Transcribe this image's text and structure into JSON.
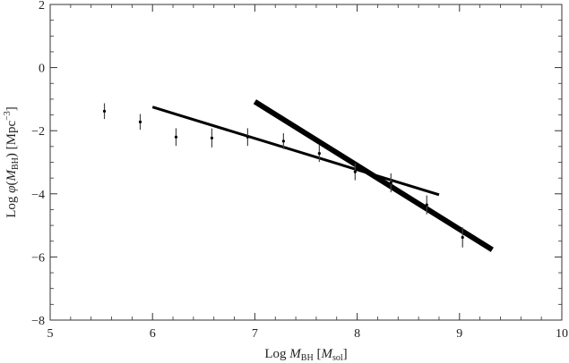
{
  "chart_data": {
    "type": "scatter",
    "xlim": [
      5,
      10
    ],
    "ylim": [
      -8,
      2
    ],
    "x_ticks": [
      5,
      6,
      7,
      8,
      9,
      10
    ],
    "y_ticks": [
      2,
      0,
      -2,
      -4,
      -6,
      -8
    ],
    "xlabel": {
      "pre": "Log ",
      "var": "M",
      "sub": "BH",
      "post": " [",
      "var2": "M",
      "sub2": "sol",
      "end": "]"
    },
    "ylabel": {
      "pre": "Log ",
      "phi": "φ",
      "open": "(",
      "var": "M",
      "sub": "BH",
      "close": ") [Mpc",
      "sup": "−3",
      "end": "]"
    },
    "grid": false,
    "series": [
      {
        "type": "errorbar",
        "points": [
          {
            "x": 5.53,
            "y": -1.38,
            "yerr": 0.25
          },
          {
            "x": 5.88,
            "y": -1.72,
            "yerr": 0.25
          },
          {
            "x": 6.23,
            "y": -2.2,
            "yerr": 0.28
          },
          {
            "x": 6.58,
            "y": -2.23,
            "yerr": 0.3
          },
          {
            "x": 6.93,
            "y": -2.2,
            "yerr": 0.28
          },
          {
            "x": 7.28,
            "y": -2.33,
            "yerr": 0.25
          },
          {
            "x": 7.63,
            "y": -2.72,
            "yerr": 0.27
          },
          {
            "x": 7.98,
            "y": -3.3,
            "yerr": 0.27
          },
          {
            "x": 8.33,
            "y": -3.65,
            "yerr": 0.3
          },
          {
            "x": 8.68,
            "y": -4.35,
            "yerr": 0.3
          },
          {
            "x": 9.03,
            "y": -5.38,
            "yerr": 0.32
          }
        ]
      },
      {
        "type": "line",
        "width": "thin",
        "x": [
          6.0,
          8.8
        ],
        "y": [
          -1.25,
          -4.03
        ]
      },
      {
        "type": "line",
        "width": "thick",
        "x": [
          7.0,
          9.32
        ],
        "y": [
          -1.08,
          -5.77
        ]
      }
    ]
  }
}
